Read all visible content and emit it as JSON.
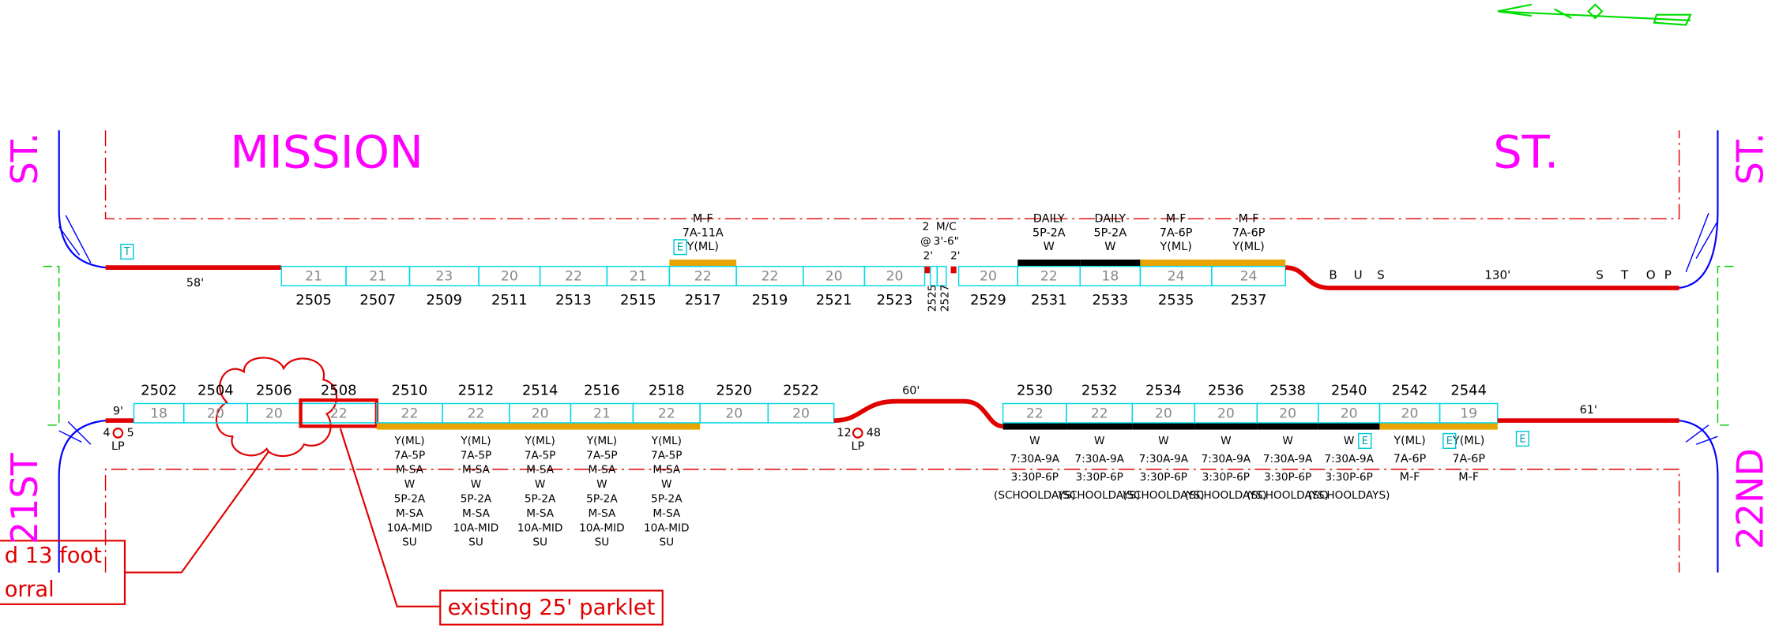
{
  "streets": {
    "main_left": "MISSION",
    "main_right": "ST.",
    "west_top": "ST.",
    "west_bottom": "21ST",
    "east_top": "ST.",
    "east_bottom": "22ND"
  },
  "north_side": {
    "west_curb": "58'",
    "sign": "T",
    "spaces": [
      {
        "length": "21",
        "address": "2505"
      },
      {
        "length": "21",
        "address": "2507"
      },
      {
        "length": "23",
        "address": "2509"
      },
      {
        "length": "20",
        "address": "2511"
      },
      {
        "length": "22",
        "address": "2513"
      },
      {
        "length": "21",
        "address": "2515"
      },
      {
        "length": "22",
        "address": "2517",
        "curb_color": "#e8a500",
        "regulation": [
          "M-F",
          "7A-11A",
          "Y(ML)"
        ],
        "sign": "E"
      },
      {
        "length": "22",
        "address": "2519"
      },
      {
        "length": "20",
        "address": "2521"
      },
      {
        "length": "20",
        "address": "2523"
      },
      {
        "length": "20",
        "address": "2529"
      },
      {
        "length": "22",
        "address": "2531",
        "curb_color": "#000000",
        "regulation": [
          "DAILY",
          "5P-2A",
          "W"
        ]
      },
      {
        "length": "18",
        "address": "2533",
        "curb_color": "#000000",
        "regulation": [
          "DAILY",
          "5P-2A",
          "W"
        ]
      },
      {
        "length": "24",
        "address": "2535",
        "curb_color": "#e8a500",
        "regulation": [
          "M-F",
          "7A-6P",
          "Y(ML)"
        ]
      },
      {
        "length": "24",
        "address": "2537",
        "curb_color": "#e8a500",
        "regulation": [
          "M-F",
          "7A-6P",
          "Y(ML)"
        ]
      }
    ],
    "motorcycle": {
      "addresses": [
        "2525",
        "2527"
      ],
      "labels": [
        "2",
        "@",
        "2'",
        "M/C",
        "3'-6\"",
        "2'"
      ]
    },
    "bus_stop": [
      "B",
      "U",
      "S",
      "130'",
      "S",
      "T",
      "O",
      "P"
    ]
  },
  "south_side": {
    "west_curb": "9'",
    "pole_left": [
      "4",
      "5",
      "LP"
    ],
    "spaces": [
      {
        "length": "18",
        "address": "2502"
      },
      {
        "length": "20",
        "address": "2504"
      },
      {
        "length": "20",
        "address": "2506"
      },
      {
        "length": "22",
        "address": "2508",
        "outline_color": "#e00000"
      },
      {
        "length": "22",
        "address": "2510",
        "curb_color": "#e8a500",
        "regulation": [
          "Y(ML)",
          "7A-5P",
          "M-SA",
          "W",
          "5P-2A",
          "M-SA",
          "10A-MID",
          "SU"
        ]
      },
      {
        "length": "22",
        "address": "2512",
        "curb_color": "#e8a500",
        "regulation": [
          "Y(ML)",
          "7A-5P",
          "M-SA",
          "W",
          "5P-2A",
          "M-SA",
          "10A-MID",
          "SU"
        ]
      },
      {
        "length": "20",
        "address": "2514",
        "curb_color": "#e8a500",
        "regulation": [
          "Y(ML)",
          "7A-5P",
          "M-SA",
          "W",
          "5P-2A",
          "M-SA",
          "10A-MID",
          "SU"
        ]
      },
      {
        "length": "21",
        "address": "2516",
        "curb_color": "#e8a500",
        "regulation": [
          "Y(ML)",
          "7A-5P",
          "M-SA",
          "W",
          "5P-2A",
          "M-SA",
          "10A-MID",
          "SU"
        ]
      },
      {
        "length": "22",
        "address": "2518",
        "curb_color": "#e8a500",
        "regulation": [
          "Y(ML)",
          "7A-5P",
          "M-SA",
          "W",
          "5P-2A",
          "M-SA",
          "10A-MID",
          "SU"
        ]
      },
      {
        "length": "20",
        "address": "2520"
      },
      {
        "length": "20",
        "address": "2522"
      },
      {
        "length": "22",
        "address": "2530",
        "curb_color": "#000000",
        "regulation": [
          "W",
          "7:30A-9A",
          "3:30P-6P",
          "(SCHOOLDAYS)"
        ]
      },
      {
        "length": "22",
        "address": "2532",
        "curb_color": "#000000",
        "regulation": [
          "W",
          "7:30A-9A",
          "3:30P-6P",
          "(SCHOOLDAYS)"
        ]
      },
      {
        "length": "20",
        "address": "2534",
        "curb_color": "#000000",
        "regulation": [
          "W",
          "7:30A-9A",
          "3:30P-6P",
          "(SCHOOLDAYS)"
        ]
      },
      {
        "length": "20",
        "address": "2536",
        "curb_color": "#000000",
        "regulation": [
          "W",
          "7:30A-9A",
          "3:30P-6P",
          "(SCHOOLDAYS)"
        ]
      },
      {
        "length": "20",
        "address": "2538",
        "curb_color": "#000000",
        "regulation": [
          "W",
          "7:30A-9A",
          "3:30P-6P",
          "(SCHOOLDAYS)"
        ]
      },
      {
        "length": "20",
        "address": "2540",
        "curb_color": "#000000",
        "regulation": [
          "W",
          "7:30A-9A",
          "3:30P-6P",
          "(SCHOOLDAYS)"
        ],
        "sign": "E"
      },
      {
        "length": "20",
        "address": "2542",
        "curb_color": "#e8a500",
        "regulation": [
          "Y(ML)",
          "7A-6P",
          "M-F"
        ]
      },
      {
        "length": "19",
        "address": "2544",
        "curb_color": "#e8a500",
        "regulation": [
          "Y(ML)",
          "7A-6P",
          "M-F"
        ],
        "sign": "E"
      }
    ],
    "red_zone": "60'",
    "pole_mid": [
      "12",
      "48",
      "LP"
    ],
    "east_curb": "61'",
    "east_sign": "E"
  },
  "callouts": [
    "d 13 foot",
    "orral",
    "existing 25' parklet"
  ]
}
